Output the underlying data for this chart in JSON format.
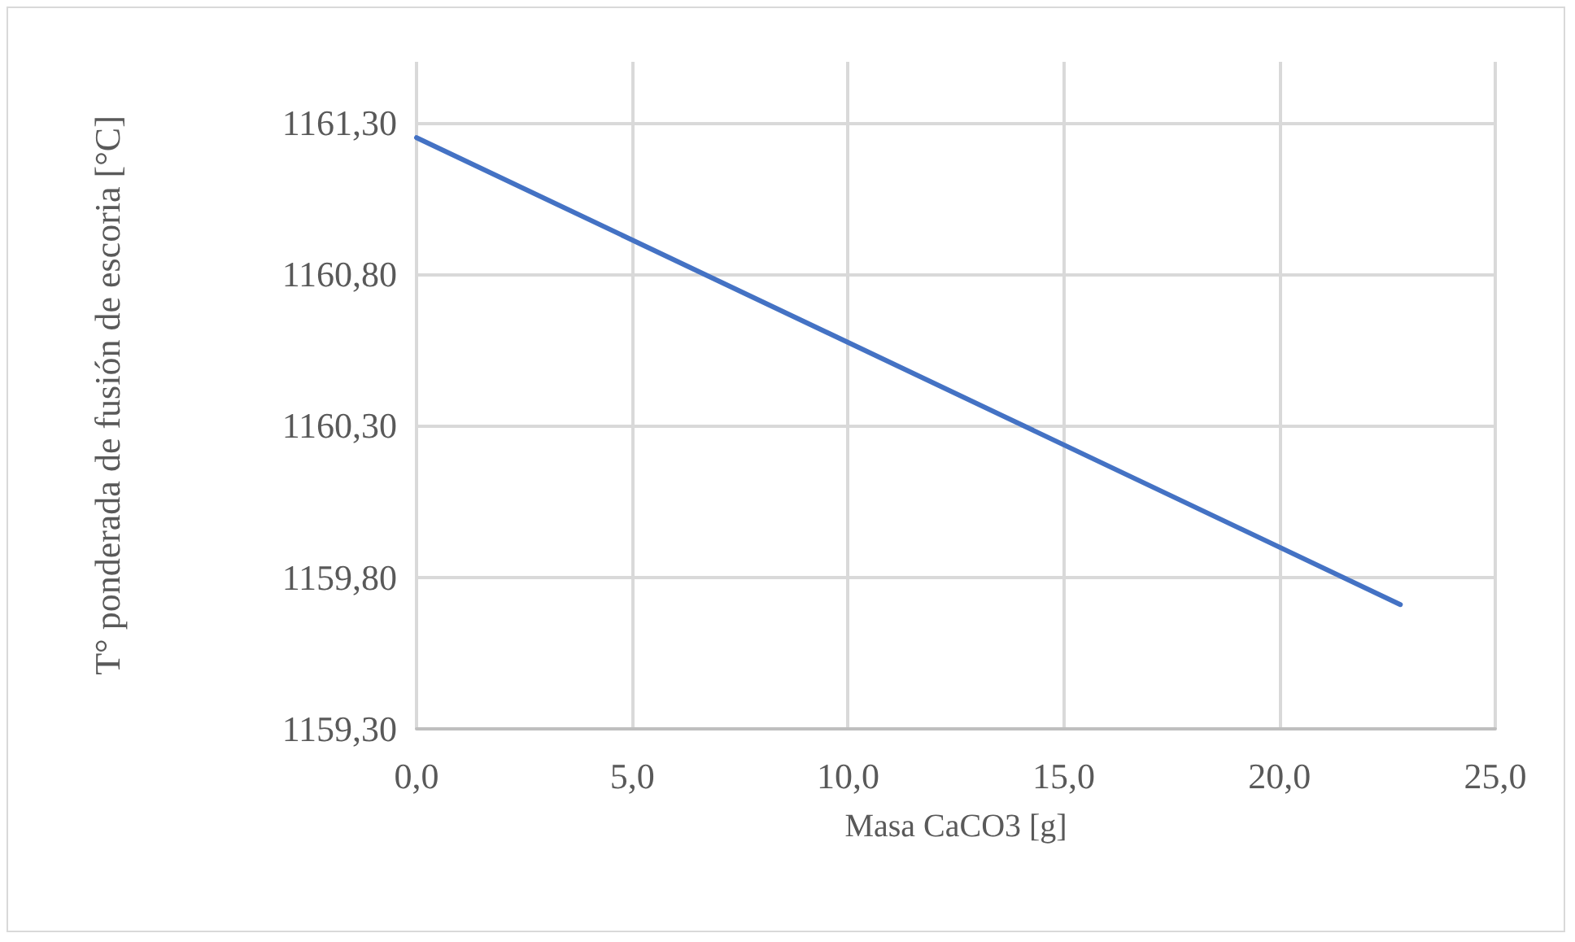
{
  "chart_data": {
    "type": "line",
    "xlabel": "Masa CaCO3 [g]",
    "ylabel": "T° ponderada de fusión de escoria [°C]",
    "x": [
      0,
      22.8
    ],
    "series": [
      {
        "color": "#4472c4",
        "values": [
          1161.25,
          1159.71
        ]
      }
    ],
    "xlim": [
      0,
      25
    ],
    "xticks": [
      {
        "value": 0,
        "label": "0,0"
      },
      {
        "value": 5,
        "label": "5,0"
      },
      {
        "value": 10,
        "label": "10,0"
      },
      {
        "value": 15,
        "label": "15,0"
      },
      {
        "value": 20,
        "label": "20,0"
      },
      {
        "value": 25,
        "label": "25,0"
      }
    ],
    "ylim": [
      1159.3,
      1161.5
    ],
    "yticks": [
      {
        "value": 1159.3,
        "label": "1159,30"
      },
      {
        "value": 1159.8,
        "label": "1159,80"
      },
      {
        "value": 1160.3,
        "label": "1160,30"
      },
      {
        "value": 1160.8,
        "label": "1160,80"
      },
      {
        "value": 1161.3,
        "label": "1161,30"
      }
    ],
    "grid": true,
    "marker": "none",
    "line_style": "solid"
  }
}
